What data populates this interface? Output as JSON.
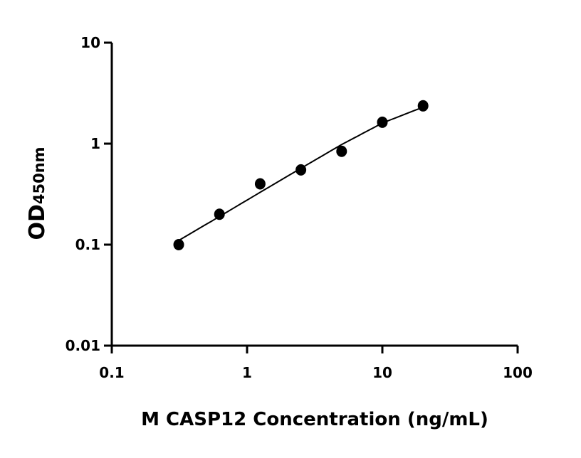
{
  "chart_data": {
    "type": "scatter",
    "title": "",
    "xlabel": "M CASP12 Concentration (ng/mL)",
    "ylabel_main": "OD",
    "ylabel_sub": "450nm",
    "xscale": "log",
    "yscale": "log",
    "xlim": [
      0.1,
      100
    ],
    "ylim": [
      0.01,
      10
    ],
    "xticks": [
      {
        "value": 0.1,
        "label": "0.1"
      },
      {
        "value": 1,
        "label": "1"
      },
      {
        "value": 10,
        "label": "10"
      },
      {
        "value": 100,
        "label": "100"
      }
    ],
    "yticks": [
      {
        "value": 0.01,
        "label": "0.01"
      },
      {
        "value": 0.1,
        "label": "0.1"
      },
      {
        "value": 1,
        "label": "1"
      },
      {
        "value": 10,
        "label": "10"
      }
    ],
    "grid": false,
    "points": {
      "x": [
        0.3125,
        0.625,
        1.25,
        2.5,
        5,
        10,
        20
      ],
      "y": [
        0.1,
        0.2,
        0.4,
        0.55,
        0.84,
        1.63,
        2.37
      ]
    },
    "fit_curve": {
      "x": [
        0.3125,
        0.625,
        1.25,
        2.5,
        5,
        10,
        20
      ],
      "y": [
        0.11,
        0.19,
        0.33,
        0.57,
        0.98,
        1.6,
        2.3
      ]
    },
    "color": "#000000"
  }
}
